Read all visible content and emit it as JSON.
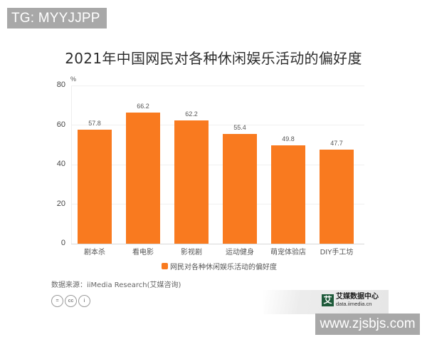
{
  "watermarks": {
    "top_left": "TG: MYYJJPP",
    "bottom_right": "www.zjsbjs.com"
  },
  "colors": {
    "bar": "#f97a1f",
    "watermark_bg": "#a8a8a8",
    "logo_green": "#1e5a3a"
  },
  "chart_data": {
    "type": "bar",
    "title": "2021年中国网民对各种休闲娱乐活动的偏好度",
    "xlabel": "",
    "ylabel": "%",
    "ylim": [
      0,
      80
    ],
    "yticks": [
      0,
      20,
      40,
      60,
      80
    ],
    "grid": true,
    "legend_position": "bottom",
    "categories": [
      "剧本杀",
      "看电影",
      "影视剧",
      "运动健身",
      "萌宠体验店",
      "DIY手工坊"
    ],
    "series": [
      {
        "name": "网民对各种休闲娱乐活动的偏好度",
        "values": [
          57.8,
          66.2,
          62.2,
          55.4,
          49.8,
          47.7
        ],
        "labels": [
          "57.8",
          "66.2",
          "62.2",
          "55.4",
          "49.8",
          "47.7"
        ]
      }
    ]
  },
  "ticks": {
    "y0": "0",
    "y20": "20",
    "y40": "40",
    "y60": "60",
    "y80": "80",
    "unit": "%"
  },
  "footer": {
    "source": "数据来源：iiMedia Research(艾媒咨询)",
    "license_icons": [
      "equal-icon",
      "cc-icon",
      "person-icon"
    ],
    "license_glyphs": [
      "=",
      "cc",
      "i"
    ],
    "logo_mark": "艾",
    "logo_cn": "艾媒数据中心",
    "logo_en": "data.iimedia.cn"
  }
}
